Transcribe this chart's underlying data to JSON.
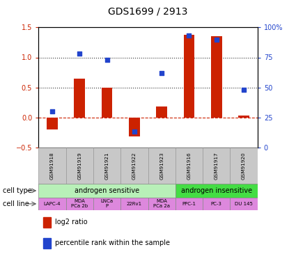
{
  "title": "GDS1699 / 2913",
  "samples": [
    "GSM91918",
    "GSM91919",
    "GSM91921",
    "GSM91922",
    "GSM91923",
    "GSM91916",
    "GSM91917",
    "GSM91920"
  ],
  "log2_ratio": [
    -0.2,
    0.65,
    0.5,
    -0.32,
    0.18,
    1.38,
    1.35,
    0.03
  ],
  "percentile_rank_pct": [
    30,
    78,
    73,
    13,
    62,
    93,
    90,
    48
  ],
  "cell_type_groups": [
    {
      "label": "androgen sensitive",
      "start": 0,
      "end": 5,
      "color": "#b8f0b8"
    },
    {
      "label": "androgen insensitive",
      "start": 5,
      "end": 8,
      "color": "#44dd44"
    }
  ],
  "cell_lines": [
    "LAPC-4",
    "MDA\nPCa 2b",
    "LNCa\nP",
    "22Rv1",
    "MDA\nPCa 2a",
    "PPC-1",
    "PC-3",
    "DU 145"
  ],
  "cell_line_color": "#dd88dd",
  "sample_header_color": "#c8c8c8",
  "bar_color": "#cc2200",
  "dot_color": "#2244cc",
  "ylim_left": [
    -0.5,
    1.5
  ],
  "ylim_right": [
    0,
    100
  ],
  "yticks_left": [
    -0.5,
    0.0,
    0.5,
    1.0,
    1.5
  ],
  "yticks_right": [
    0,
    25,
    50,
    75,
    100
  ],
  "zero_line_color": "#cc2200",
  "dotted_line_color": "#333333",
  "left_label_color": "#cc2200",
  "right_label_color": "#2244cc",
  "legend_items": [
    {
      "label": "log2 ratio",
      "color": "#cc2200"
    },
    {
      "label": "percentile rank within the sample",
      "color": "#2244cc"
    }
  ],
  "left_labels": [
    "cell type",
    "cell line"
  ],
  "bar_width": 0.4
}
